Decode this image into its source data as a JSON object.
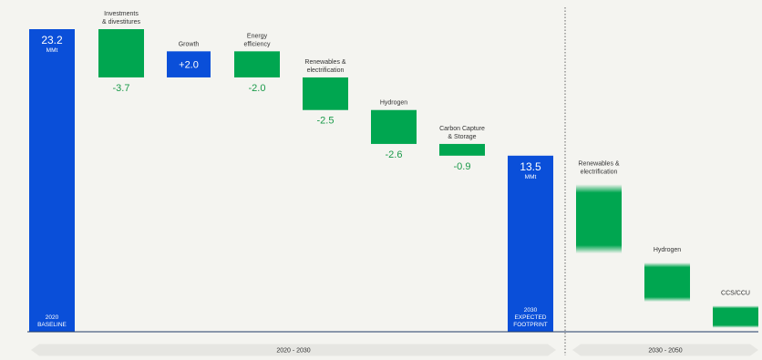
{
  "chart_data": {
    "type": "waterfall",
    "unit_label": "MMt",
    "ylim": [
      0,
      23.2
    ],
    "steps": [
      {
        "id": "baseline",
        "kind": "total",
        "value": 23.2,
        "value_label": "23.2",
        "unit": "MMt",
        "foot_lines": [
          "2020",
          "BASELINE"
        ],
        "top_lines": []
      },
      {
        "id": "investments",
        "kind": "delta",
        "value": -3.7,
        "value_label": "-3.7",
        "top_lines": [
          "Investments",
          "& divestitures"
        ]
      },
      {
        "id": "growth",
        "kind": "delta",
        "value": 2.0,
        "value_label": "+2.0",
        "top_lines": [
          "Growth"
        ]
      },
      {
        "id": "energy",
        "kind": "delta",
        "value": -2.0,
        "value_label": "-2.0",
        "top_lines": [
          "Energy",
          "efficiency"
        ]
      },
      {
        "id": "renewables",
        "kind": "delta",
        "value": -2.5,
        "value_label": "-2.5",
        "top_lines": [
          "Renewables &",
          "electrification"
        ]
      },
      {
        "id": "hydrogen",
        "kind": "delta",
        "value": -2.6,
        "value_label": "-2.6",
        "top_lines": [
          "Hydrogen"
        ]
      },
      {
        "id": "ccs",
        "kind": "delta",
        "value": -0.9,
        "value_label": "-0.9",
        "top_lines": [
          "Carbon Capture",
          "& Storage"
        ]
      },
      {
        "id": "footprint",
        "kind": "total",
        "value": 13.5,
        "value_label": "13.5",
        "unit": "MMt",
        "foot_lines": [
          "2030",
          "EXPECTED",
          "FOOTPRINT"
        ],
        "top_lines": []
      }
    ],
    "future_steps": [
      {
        "id": "renewables-2050",
        "top": 11.3,
        "bottom": 6.0,
        "top_lines": [
          "Renewables &",
          "electrification"
        ]
      },
      {
        "id": "hydrogen-2050",
        "top": 5.3,
        "bottom": 2.3,
        "top_lines": [
          "Hydrogen"
        ]
      },
      {
        "id": "ccs-2050",
        "top": 2.0,
        "bottom": 0.3,
        "top_lines": [
          "CCS/CCU"
        ]
      }
    ],
    "periods": [
      {
        "id": "period-2020-2030",
        "label": "2020 - 2030"
      },
      {
        "id": "period-2030-2050",
        "label": "2030 - 2050"
      }
    ],
    "colors": {
      "total": "#0a4fd9",
      "increase": "#0a4fd9",
      "decrease": "#00a650",
      "label_negative": "#1b9a4a",
      "background": "#f4f4f0",
      "arrow": "#e6e6e2",
      "baseline_axis": "#1f3a66"
    }
  }
}
